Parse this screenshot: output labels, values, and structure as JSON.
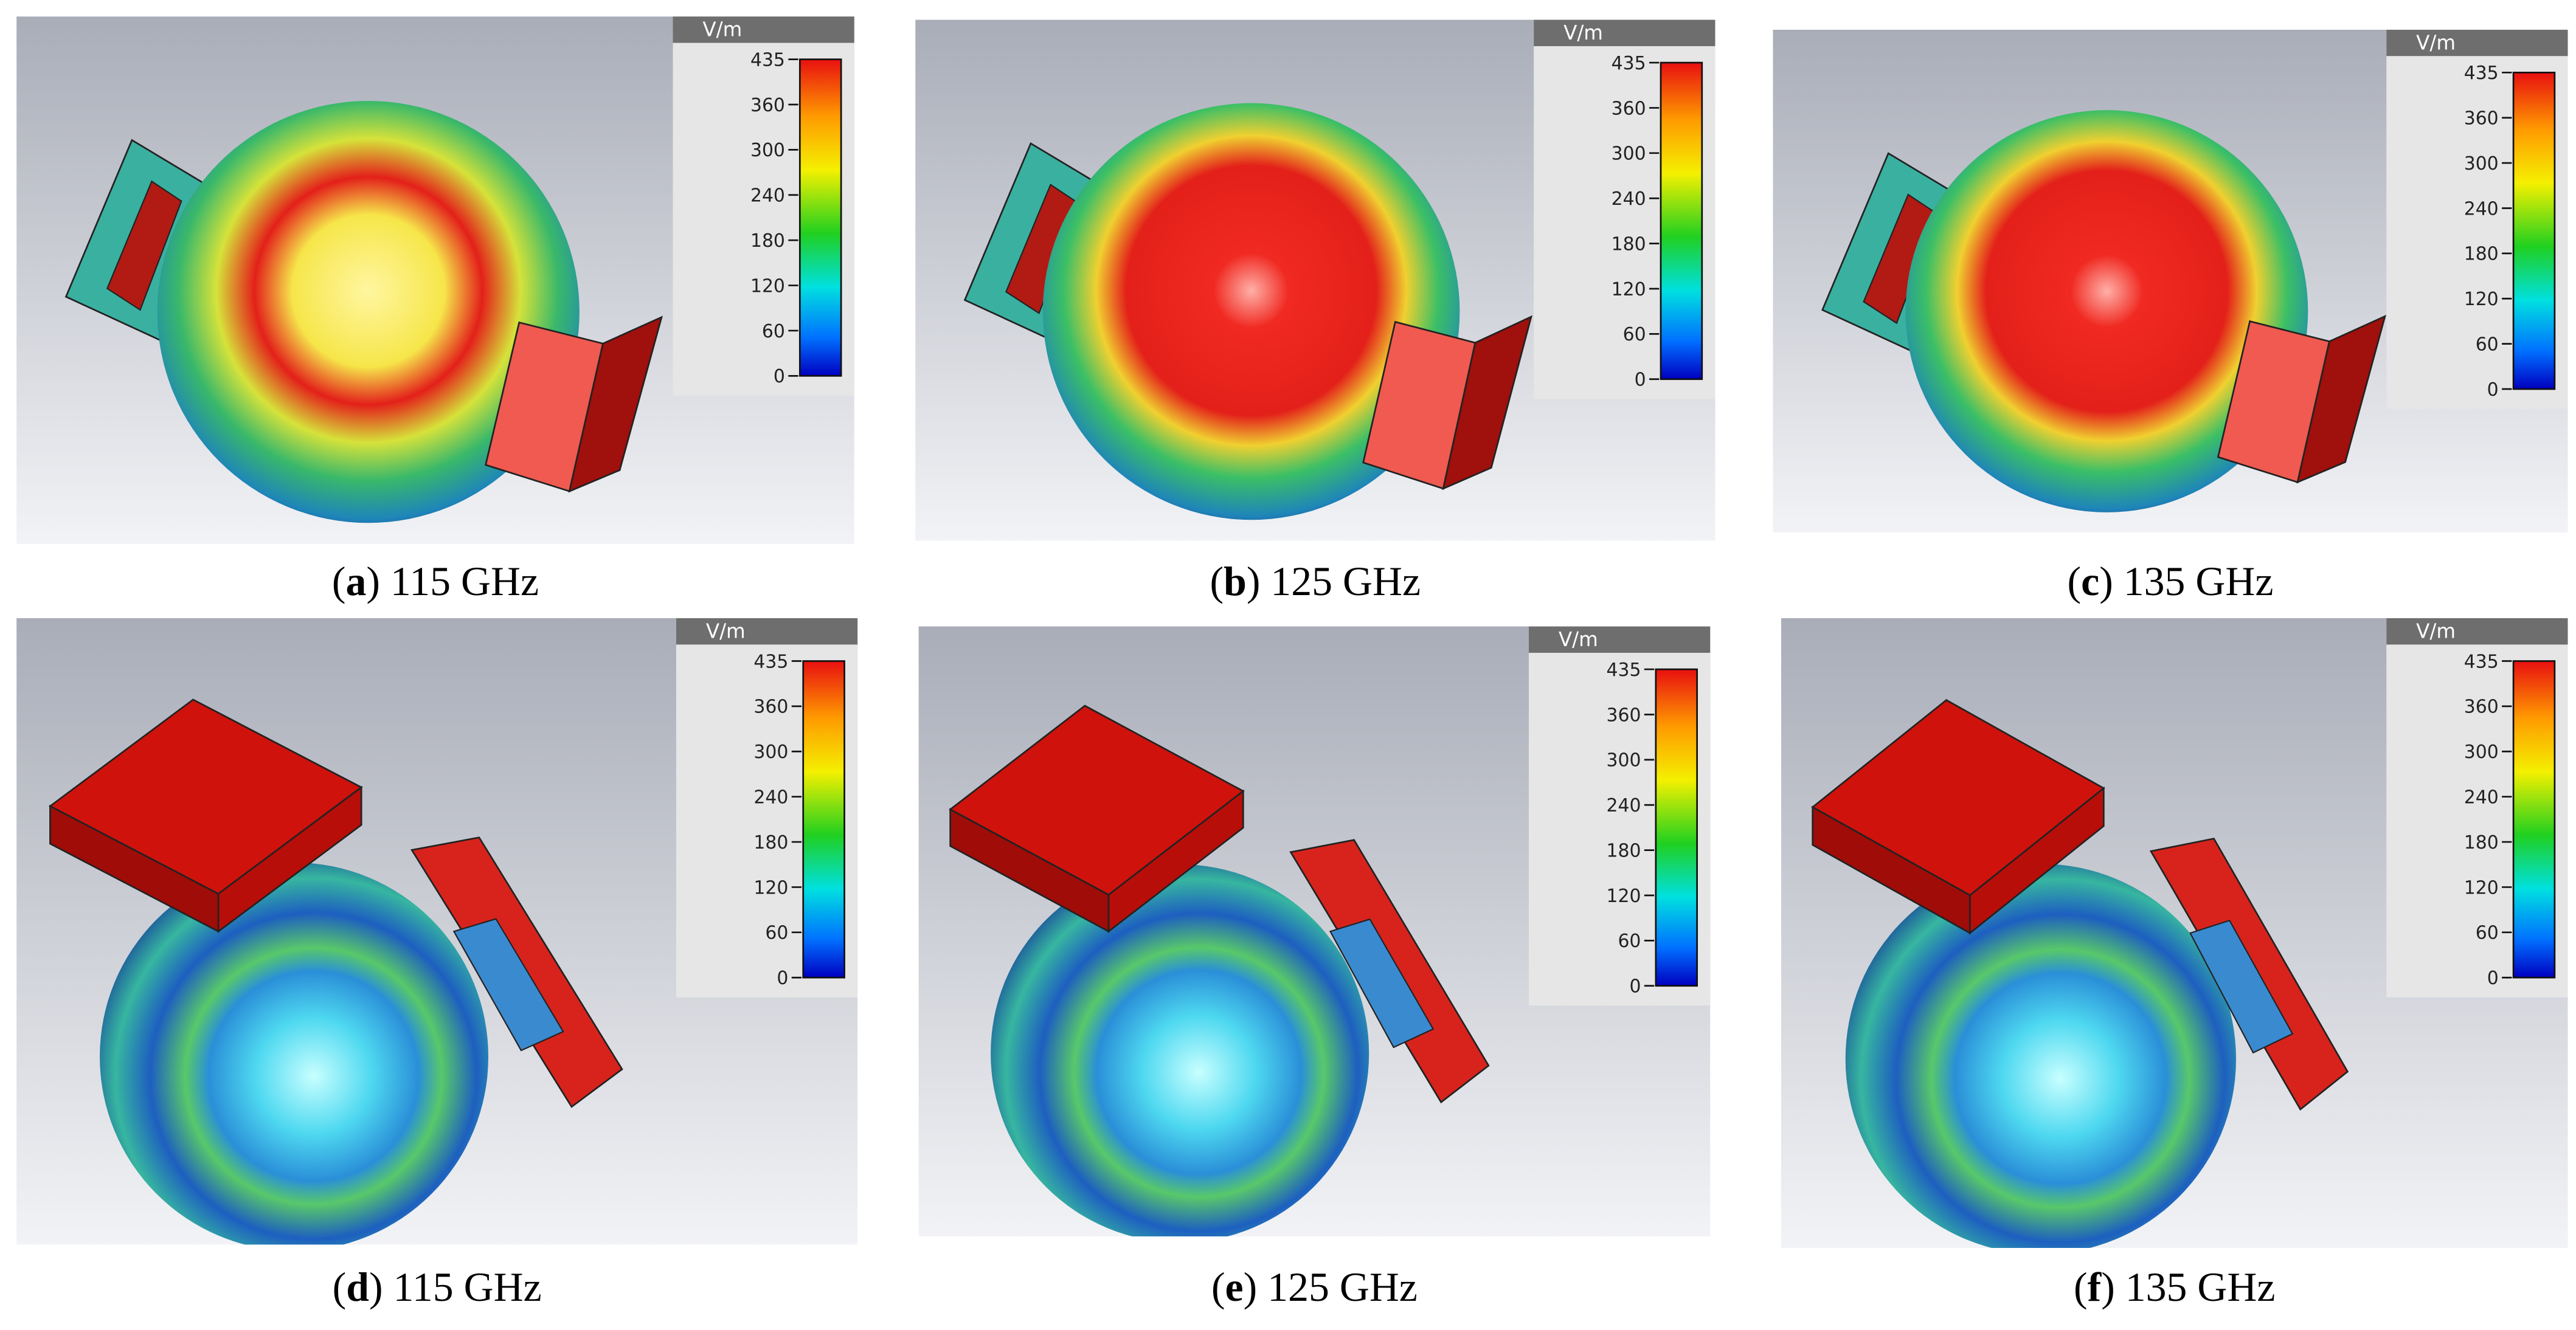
{
  "panels": [
    {
      "label": {
        "open": "(",
        "letter": "a",
        "close": ")"
      },
      "caption": "115 GHz",
      "unit": "V/m",
      "ticks": [
        435,
        360,
        300,
        240,
        180,
        120,
        60,
        0
      ]
    },
    {
      "label": {
        "open": "(",
        "letter": "b",
        "close": ")"
      },
      "caption": "125 GHz",
      "unit": "V/m",
      "ticks": [
        435,
        360,
        300,
        240,
        180,
        120,
        60,
        0
      ]
    },
    {
      "label": {
        "open": "(",
        "letter": "c",
        "close": ")"
      },
      "caption": "135 GHz",
      "unit": "V/m",
      "ticks": [
        435,
        360,
        300,
        240,
        180,
        120,
        60,
        0
      ]
    },
    {
      "label": {
        "open": "(",
        "letter": "d",
        "close": ")"
      },
      "caption": "115 GHz",
      "unit": "V/m",
      "ticks": [
        435,
        360,
        300,
        240,
        180,
        120,
        60,
        0
      ]
    },
    {
      "label": {
        "open": "(",
        "letter": "e",
        "close": ")"
      },
      "caption": "125 GHz",
      "unit": "V/m",
      "ticks": [
        435,
        360,
        300,
        240,
        180,
        120,
        60,
        0
      ]
    },
    {
      "label": {
        "open": "(",
        "letter": "f",
        "close": ")"
      },
      "caption": "135 GHz",
      "unit": "V/m",
      "ticks": [
        435,
        360,
        300,
        240,
        180,
        120,
        60,
        0
      ]
    }
  ]
}
